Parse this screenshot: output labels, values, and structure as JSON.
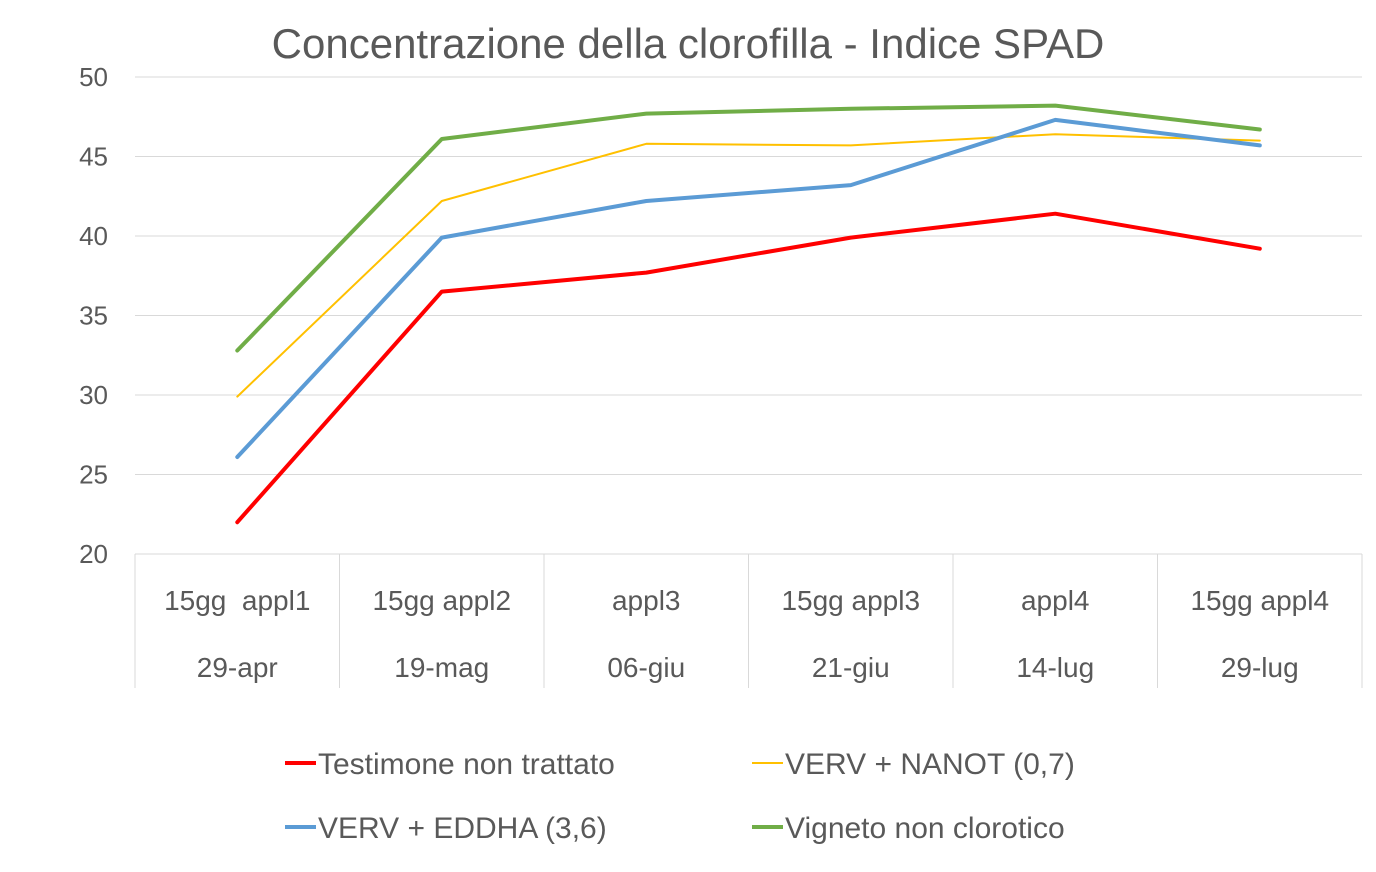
{
  "chart_data": {
    "type": "line",
    "title": "Concentrazione della clorofilla - Indice SPAD",
    "xlabel": "",
    "ylabel": "",
    "ylim": [
      20,
      50
    ],
    "yticks": [
      20,
      25,
      30,
      35,
      40,
      45,
      50
    ],
    "grid": true,
    "legend_position": "bottom",
    "categories": [
      {
        "line1": "15gg  appl1",
        "line2": "29-apr"
      },
      {
        "line1": "15gg appl2",
        "line2": "19-mag"
      },
      {
        "line1": "appl3",
        "line2": "06-giu"
      },
      {
        "line1": "15gg appl3",
        "line2": "21-giu"
      },
      {
        "line1": "appl4",
        "line2": "14-lug"
      },
      {
        "line1": "15gg appl4",
        "line2": "29-lug"
      }
    ],
    "series": [
      {
        "name": "Testimone non trattato",
        "color": "#ff0000",
        "width": 4,
        "values": [
          22.0,
          36.5,
          37.7,
          39.9,
          41.4,
          39.2
        ]
      },
      {
        "name": "VERV + NANOT (0,7)",
        "color": "#ffc000",
        "width": 2,
        "values": [
          29.9,
          42.2,
          45.8,
          45.7,
          46.4,
          46.0
        ]
      },
      {
        "name": "VERV + EDDHA (3,6)",
        "color": "#5b9bd5",
        "width": 4,
        "values": [
          26.1,
          39.9,
          42.2,
          43.2,
          47.3,
          45.7
        ]
      },
      {
        "name": "Vigneto non clorotico",
        "color": "#70ad47",
        "width": 4,
        "values": [
          32.8,
          46.1,
          47.7,
          48.0,
          48.2,
          46.7
        ]
      }
    ]
  }
}
